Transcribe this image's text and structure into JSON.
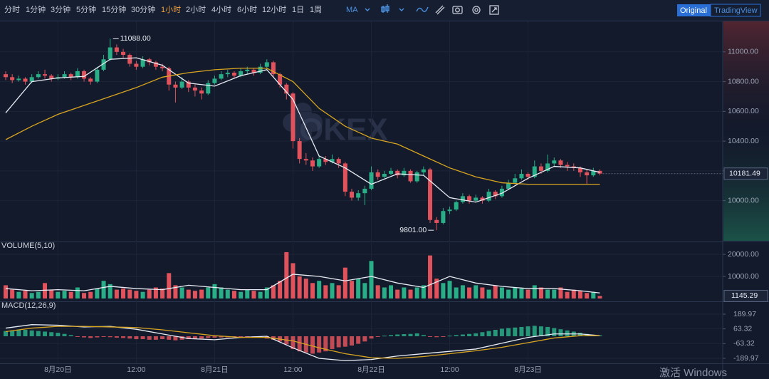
{
  "toolbar": {
    "periods": [
      "分时",
      "1分钟",
      "3分钟",
      "5分钟",
      "15分钟",
      "30分钟",
      "1小时",
      "2小时",
      "4小时",
      "6小时",
      "12小时",
      "1日",
      "1周"
    ],
    "active_period": "1小时",
    "indicator": "MA",
    "modes": [
      "Original",
      "TradingView"
    ],
    "active_mode": "Original"
  },
  "watermark": "OKEX",
  "os_watermark": "激活 Windows",
  "chart_data": {
    "type": "candlestick",
    "up_color": "#2aae87",
    "down_color": "#e0535d",
    "grid": true,
    "ylim": [
      9730,
      11205
    ],
    "yticks": [
      {
        "value": 10000,
        "label": "10000.00"
      },
      {
        "value": 10200,
        "label": "10200.00"
      },
      {
        "value": 10400,
        "label": "10400.00"
      },
      {
        "value": 10600,
        "label": "10600.00"
      },
      {
        "value": 10800,
        "label": "10800.00"
      },
      {
        "value": 11000,
        "label": "11000.00"
      }
    ],
    "xticks": [
      {
        "value": 8,
        "label": "8月20日"
      },
      {
        "value": 20,
        "label": "12:00"
      },
      {
        "value": 32,
        "label": "8月21日"
      },
      {
        "value": 44,
        "label": "12:00"
      },
      {
        "value": 56,
        "label": "8月22日"
      },
      {
        "value": 68,
        "label": "12:00"
      },
      {
        "value": 80,
        "label": "8月23日"
      }
    ],
    "max_label": "11088.00",
    "min_label": "9801.00",
    "candles": [
      [
        10850,
        10870,
        10810,
        10830
      ],
      [
        10830,
        10850,
        10790,
        10810
      ],
      [
        10810,
        10840,
        10800,
        10820
      ],
      [
        10820,
        10830,
        10780,
        10800
      ],
      [
        10800,
        10850,
        10790,
        10830
      ],
      [
        10830,
        10870,
        10820,
        10850
      ],
      [
        10850,
        10880,
        10820,
        10840
      ],
      [
        10840,
        10850,
        10800,
        10820
      ],
      [
        10820,
        10850,
        10810,
        10830
      ],
      [
        10830,
        10870,
        10820,
        10850
      ],
      [
        10850,
        10860,
        10810,
        10830
      ],
      [
        10830,
        10890,
        10820,
        10870
      ],
      [
        10870,
        10880,
        10800,
        10820
      ],
      [
        10820,
        10830,
        10780,
        10800
      ],
      [
        10800,
        10900,
        10790,
        10880
      ],
      [
        10880,
        10980,
        10870,
        10950
      ],
      [
        10950,
        11088,
        10940,
        11030
      ],
      [
        11030,
        11050,
        10980,
        11000
      ],
      [
        11000,
        11020,
        10960,
        10980
      ],
      [
        10980,
        10990,
        10900,
        10920
      ],
      [
        10920,
        10940,
        10880,
        10900
      ],
      [
        10900,
        10970,
        10890,
        10950
      ],
      [
        10950,
        10960,
        10910,
        10930
      ],
      [
        10930,
        10940,
        10880,
        10900
      ],
      [
        10900,
        10920,
        10870,
        10890
      ],
      [
        10890,
        10900,
        10740,
        10780
      ],
      [
        10780,
        10800,
        10660,
        10760
      ],
      [
        10760,
        10830,
        10750,
        10800
      ],
      [
        10800,
        10810,
        10730,
        10760
      ],
      [
        10760,
        10780,
        10700,
        10740
      ],
      [
        10740,
        10760,
        10680,
        10720
      ],
      [
        10720,
        10810,
        10710,
        10790
      ],
      [
        10790,
        10840,
        10780,
        10820
      ],
      [
        10820,
        10870,
        10810,
        10850
      ],
      [
        10850,
        10880,
        10830,
        10860
      ],
      [
        10860,
        10870,
        10820,
        10840
      ],
      [
        10840,
        10890,
        10830,
        10870
      ],
      [
        10870,
        10900,
        10850,
        10880
      ],
      [
        10880,
        10890,
        10840,
        10860
      ],
      [
        10860,
        10920,
        10850,
        10900
      ],
      [
        10900,
        10950,
        10880,
        10930
      ],
      [
        10930,
        10940,
        10830,
        10850
      ],
      [
        10850,
        10860,
        10760,
        10780
      ],
      [
        10780,
        10790,
        10680,
        10720
      ],
      [
        10720,
        10730,
        10350,
        10400
      ],
      [
        10400,
        10420,
        10250,
        10280
      ],
      [
        10280,
        10320,
        10240,
        10270
      ],
      [
        10270,
        10290,
        10200,
        10230
      ],
      [
        10230,
        10300,
        10220,
        10280
      ],
      [
        10280,
        10300,
        10240,
        10260
      ],
      [
        10260,
        10310,
        10250,
        10280
      ],
      [
        10280,
        10290,
        10220,
        10250
      ],
      [
        10250,
        10260,
        10030,
        10060
      ],
      [
        10060,
        10080,
        10000,
        10020
      ],
      [
        10020,
        10070,
        10000,
        10050
      ],
      [
        10050,
        10100,
        9970,
        10080
      ],
      [
        10080,
        10230,
        10070,
        10190
      ],
      [
        10190,
        10210,
        10140,
        10160
      ],
      [
        10160,
        10200,
        10150,
        10180
      ],
      [
        10180,
        10220,
        10170,
        10200
      ],
      [
        10200,
        10210,
        10150,
        10170
      ],
      [
        10170,
        10220,
        10160,
        10200
      ],
      [
        10200,
        10210,
        10120,
        10130
      ],
      [
        10130,
        10200,
        10120,
        10190
      ],
      [
        10190,
        10230,
        10170,
        10210
      ],
      [
        10210,
        10220,
        9850,
        9870
      ],
      [
        9870,
        9890,
        9801,
        9850
      ],
      [
        9850,
        9950,
        9840,
        9930
      ],
      [
        9930,
        9960,
        9910,
        9940
      ],
      [
        9940,
        10000,
        9930,
        9990
      ],
      [
        9990,
        10050,
        9980,
        10030
      ],
      [
        10030,
        10040,
        9980,
        10000
      ],
      [
        10000,
        10040,
        9990,
        10020
      ],
      [
        10020,
        10030,
        9980,
        10000
      ],
      [
        10000,
        10080,
        9990,
        10060
      ],
      [
        10060,
        10070,
        10010,
        10030
      ],
      [
        10030,
        10100,
        10020,
        10080
      ],
      [
        10080,
        10140,
        10070,
        10120
      ],
      [
        10120,
        10180,
        10110,
        10150
      ],
      [
        10150,
        10210,
        10140,
        10180
      ],
      [
        10180,
        10190,
        10140,
        10160
      ],
      [
        10160,
        10270,
        10150,
        10230
      ],
      [
        10230,
        10250,
        10180,
        10200
      ],
      [
        10200,
        10310,
        10190,
        10250
      ],
      [
        10250,
        10290,
        10230,
        10270
      ],
      [
        10270,
        10280,
        10220,
        10240
      ],
      [
        10240,
        10260,
        10200,
        10230
      ],
      [
        10230,
        10250,
        10200,
        10220
      ],
      [
        10220,
        10230,
        10160,
        10190
      ],
      [
        10190,
        10210,
        10110,
        10170
      ],
      [
        10170,
        10220,
        10160,
        10200
      ],
      [
        10200,
        10210,
        10170,
        10181.49
      ]
    ],
    "line_x": [
      0,
      4,
      8,
      12,
      16,
      20,
      24,
      28,
      32,
      36,
      40,
      44,
      48,
      52,
      56,
      60,
      64,
      68,
      72,
      76,
      80,
      84,
      88,
      91
    ],
    "ma_lines": [
      {
        "color": "#e8ecf4",
        "values": [
          10590,
          10800,
          10825,
          10835,
          10950,
          10960,
          10910,
          10790,
          10770,
          10840,
          10880,
          10680,
          10300,
          10220,
          10110,
          10180,
          10170,
          10020,
          9990,
          10050,
          10150,
          10230,
          10220,
          10190
        ]
      },
      {
        "color": "#d9a520",
        "values": [
          10410,
          10500,
          10580,
          10640,
          10700,
          10760,
          10830,
          10860,
          10880,
          10890,
          10890,
          10800,
          10620,
          10500,
          10420,
          10380,
          10300,
          10220,
          10160,
          10120,
          10110,
          10110,
          10110,
          10110
        ]
      }
    ],
    "volume": {
      "title": "VOLUME(5,10)",
      "ylim": [
        0,
        25500
      ],
      "yticks": [
        {
          "value": 10000,
          "label": "10000.00"
        },
        {
          "value": 20000,
          "label": "20000.00"
        }
      ],
      "values": [
        6000,
        4000,
        3000,
        3500,
        2500,
        3000,
        7000,
        4000,
        3000,
        3500,
        3000,
        5000,
        2500,
        3000,
        4500,
        8000,
        6500,
        4000,
        4500,
        4000,
        3500,
        3000,
        4000,
        5000,
        4500,
        11500,
        6000,
        5000,
        4000,
        3500,
        4000,
        5000,
        6500,
        5000,
        4000,
        3500,
        3000,
        4000,
        3500,
        3000,
        5000,
        6000,
        8000,
        21000,
        16000,
        10000,
        9000,
        7000,
        8000,
        6000,
        7000,
        6000,
        14000,
        8000,
        9000,
        7000,
        17000,
        6000,
        5000,
        6000,
        4000,
        5000,
        4000,
        5000,
        6000,
        19500,
        9000,
        7000,
        8000,
        5000,
        6000,
        5000,
        6000,
        5000,
        4000,
        6000,
        5000,
        4000,
        5000,
        4500,
        4000,
        6000,
        5000,
        4000,
        4000,
        5000,
        3000,
        4000,
        3500,
        2500,
        3000,
        1145.29
      ],
      "ma_line": {
        "color": "#e8ecf4",
        "values": [
          4500,
          3500,
          4000,
          3500,
          5500,
          4500,
          4000,
          6000,
          5000,
          4000,
          4000,
          11000,
          10000,
          8000,
          10000,
          7000,
          5000,
          10000,
          7000,
          5500,
          4500,
          4500,
          3500,
          2500
        ]
      }
    },
    "macd": {
      "title": "MACD(12,26,9)",
      "ylim": [
        -233,
        288
      ],
      "yticks": [
        -189.97,
        -63.32,
        63.32,
        189.97
      ],
      "histogram": [
        45,
        50,
        55,
        55,
        50,
        45,
        40,
        35,
        30,
        20,
        10,
        -5,
        -10,
        -15,
        -10,
        -5,
        -8,
        -12,
        -15,
        -20,
        -25,
        -25,
        -30,
        -30,
        -25,
        -30,
        -35,
        -30,
        -25,
        -20,
        -20,
        -15,
        -12,
        -10,
        -10,
        -8,
        -8,
        -10,
        -10,
        -12,
        -20,
        -30,
        -45,
        -70,
        -110,
        -130,
        -140,
        -150,
        -140,
        -130,
        -110,
        -95,
        -90,
        -80,
        -65,
        -45,
        -20,
        -5,
        5,
        10,
        15,
        18,
        20,
        25,
        10,
        -5,
        -8,
        -5,
        5,
        10,
        15,
        20,
        25,
        35,
        45,
        55,
        65,
        70,
        75,
        80,
        85,
        90,
        85,
        80,
        70,
        60,
        50,
        40,
        30,
        20,
        12,
        8
      ],
      "lines": [
        {
          "color": "#e8ecf4",
          "values": [
            70,
            100,
            95,
            80,
            85,
            60,
            20,
            -20,
            -30,
            -10,
            0,
            -100,
            -190,
            -210,
            -200,
            -170,
            -150,
            -130,
            -110,
            -60,
            -10,
            20,
            20,
            5
          ]
        },
        {
          "color": "#d9a520",
          "values": [
            40,
            70,
            85,
            85,
            80,
            75,
            55,
            30,
            5,
            -10,
            -10,
            -40,
            -100,
            -150,
            -185,
            -190,
            -175,
            -150,
            -125,
            -95,
            -55,
            -15,
            5,
            5
          ]
        }
      ]
    }
  }
}
